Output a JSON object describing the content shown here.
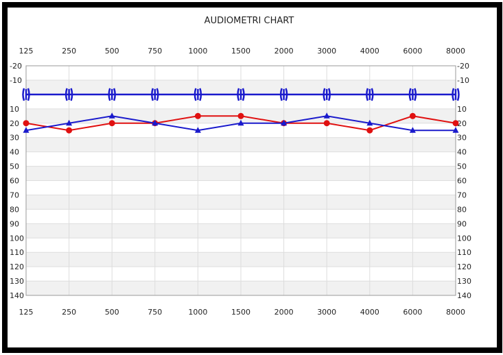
{
  "chart_data": {
    "type": "line",
    "title": "AUDIOMETRI CHART",
    "categories": [
      "125",
      "250",
      "500",
      "750",
      "1000",
      "1500",
      "2000",
      "3000",
      "4000",
      "6000",
      "8000"
    ],
    "y_ticks": [
      -20,
      -10,
      0,
      10,
      20,
      30,
      40,
      50,
      60,
      70,
      80,
      90,
      100,
      110,
      120,
      130,
      140
    ],
    "y_tick_labels": [
      "-20",
      "-10",
      "",
      "10",
      "20",
      "30",
      "40",
      "50",
      "60",
      "70",
      "80",
      "90",
      "100",
      "110",
      "120",
      "130",
      "140"
    ],
    "ylim": [
      -20,
      140
    ],
    "y_inverted": true,
    "grid": true,
    "x_axis_labels_top_and_bottom": true,
    "y_axis_labels_left_and_right": true,
    "series": [
      {
        "values": [
          20,
          25,
          20,
          20,
          15,
          15,
          20,
          20,
          25,
          15,
          20
        ],
        "color": "#e01010",
        "marker": "circle"
      },
      {
        "values": [
          25,
          20,
          15,
          20,
          25,
          20,
          20,
          15,
          20,
          25,
          25
        ],
        "color": "#1a1acc",
        "marker": "triangle"
      },
      {
        "values": [
          0,
          0,
          0,
          0,
          0,
          0,
          0,
          0,
          0,
          0,
          0
        ],
        "color": "#1a1acc",
        "marker": "bracket"
      }
    ]
  }
}
